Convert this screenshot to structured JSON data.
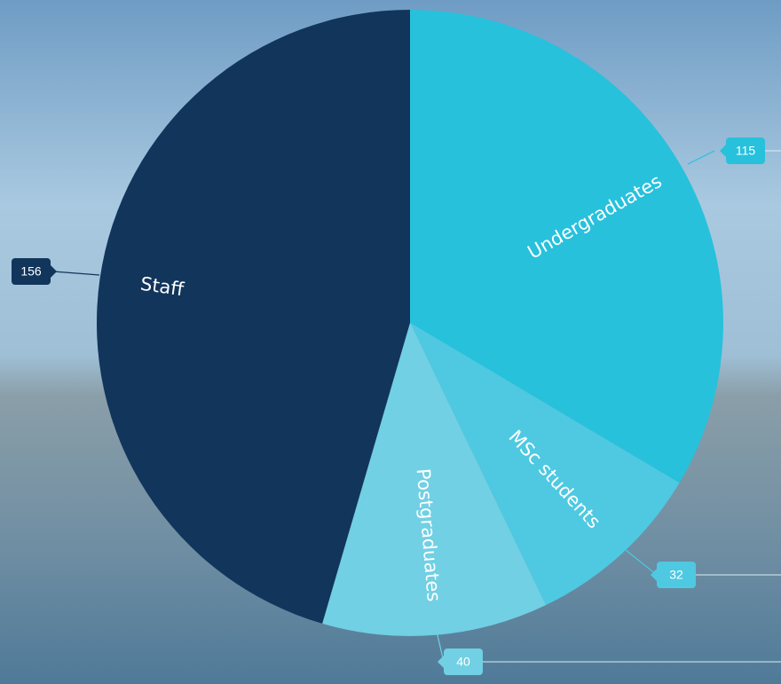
{
  "chart_data": {
    "type": "pie",
    "categories": [
      "Undergraduates",
      "MSc students",
      "Postgraduates",
      "Staff"
    ],
    "values": [
      115,
      32,
      40,
      156
    ],
    "colors": [
      "#27c1dc",
      "#4ec9e1",
      "#71d0e3",
      "#12355c"
    ]
  }
}
